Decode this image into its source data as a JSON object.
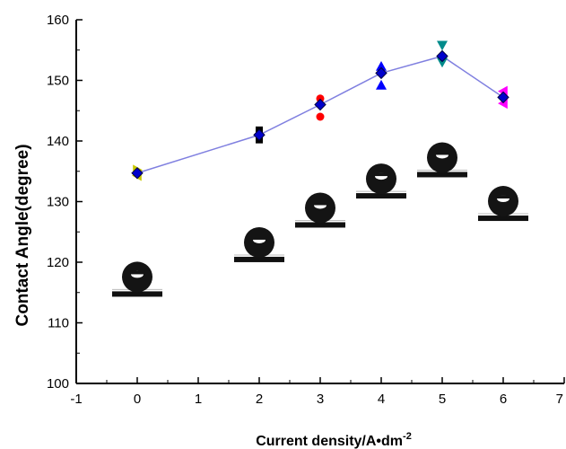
{
  "chart_data": {
    "type": "line",
    "title": "",
    "xlabel": "Current density/A•dm",
    "xlabel_superscript": "-2",
    "ylabel": "Contact Angle(degree)",
    "xlim": [
      -1,
      7
    ],
    "ylim": [
      100,
      160
    ],
    "x_ticks": [
      -1,
      0,
      1,
      2,
      3,
      4,
      5,
      6,
      7
    ],
    "y_ticks": [
      100,
      110,
      120,
      130,
      140,
      150,
      160
    ],
    "grid": false,
    "legend": "none",
    "series": [
      {
        "color": "#0000cc",
        "line_color": "#8080e0",
        "x": [
          0,
          2,
          3,
          4,
          5,
          6
        ],
        "values": [
          134.7,
          141.0,
          146.0,
          151.2,
          154.0,
          147.2
        ]
      }
    ],
    "replicate_markers": [
      {
        "x": 0,
        "y": 134.3,
        "shape": "triangle-left",
        "color": "#c8c800"
      },
      {
        "x": 0,
        "y": 135.2,
        "shape": "triangle-right",
        "color": "#c8c800"
      },
      {
        "x": 2,
        "y": 141.8,
        "shape": "square",
        "color": "#000000"
      },
      {
        "x": 2,
        "y": 140.2,
        "shape": "square",
        "color": "#000000"
      },
      {
        "x": 3,
        "y": 147.0,
        "shape": "circle",
        "color": "#ff0000"
      },
      {
        "x": 3,
        "y": 144.0,
        "shape": "circle",
        "color": "#ff0000"
      },
      {
        "x": 4,
        "y": 152.3,
        "shape": "triangle-up",
        "color": "#0000ff"
      },
      {
        "x": 4,
        "y": 149.2,
        "shape": "triangle-up",
        "color": "#0000ff"
      },
      {
        "x": 5,
        "y": 155.8,
        "shape": "triangle-down",
        "color": "#008b8b"
      },
      {
        "x": 5,
        "y": 153.0,
        "shape": "triangle-down",
        "color": "#008b8b"
      },
      {
        "x": 6,
        "y": 148.2,
        "shape": "triangle-left",
        "color": "#ff00ff"
      },
      {
        "x": 6,
        "y": 146.2,
        "shape": "triangle-left",
        "color": "#ff00ff"
      }
    ],
    "droplet_images": [
      {
        "x": 0,
        "baseline_y": 114.9
      },
      {
        "x": 2,
        "baseline_y": 120.6
      },
      {
        "x": 3,
        "baseline_y": 126.3
      },
      {
        "x": 4,
        "baseline_y": 131.1
      },
      {
        "x": 5,
        "baseline_y": 134.6
      },
      {
        "x": 6,
        "baseline_y": 127.4
      }
    ]
  }
}
